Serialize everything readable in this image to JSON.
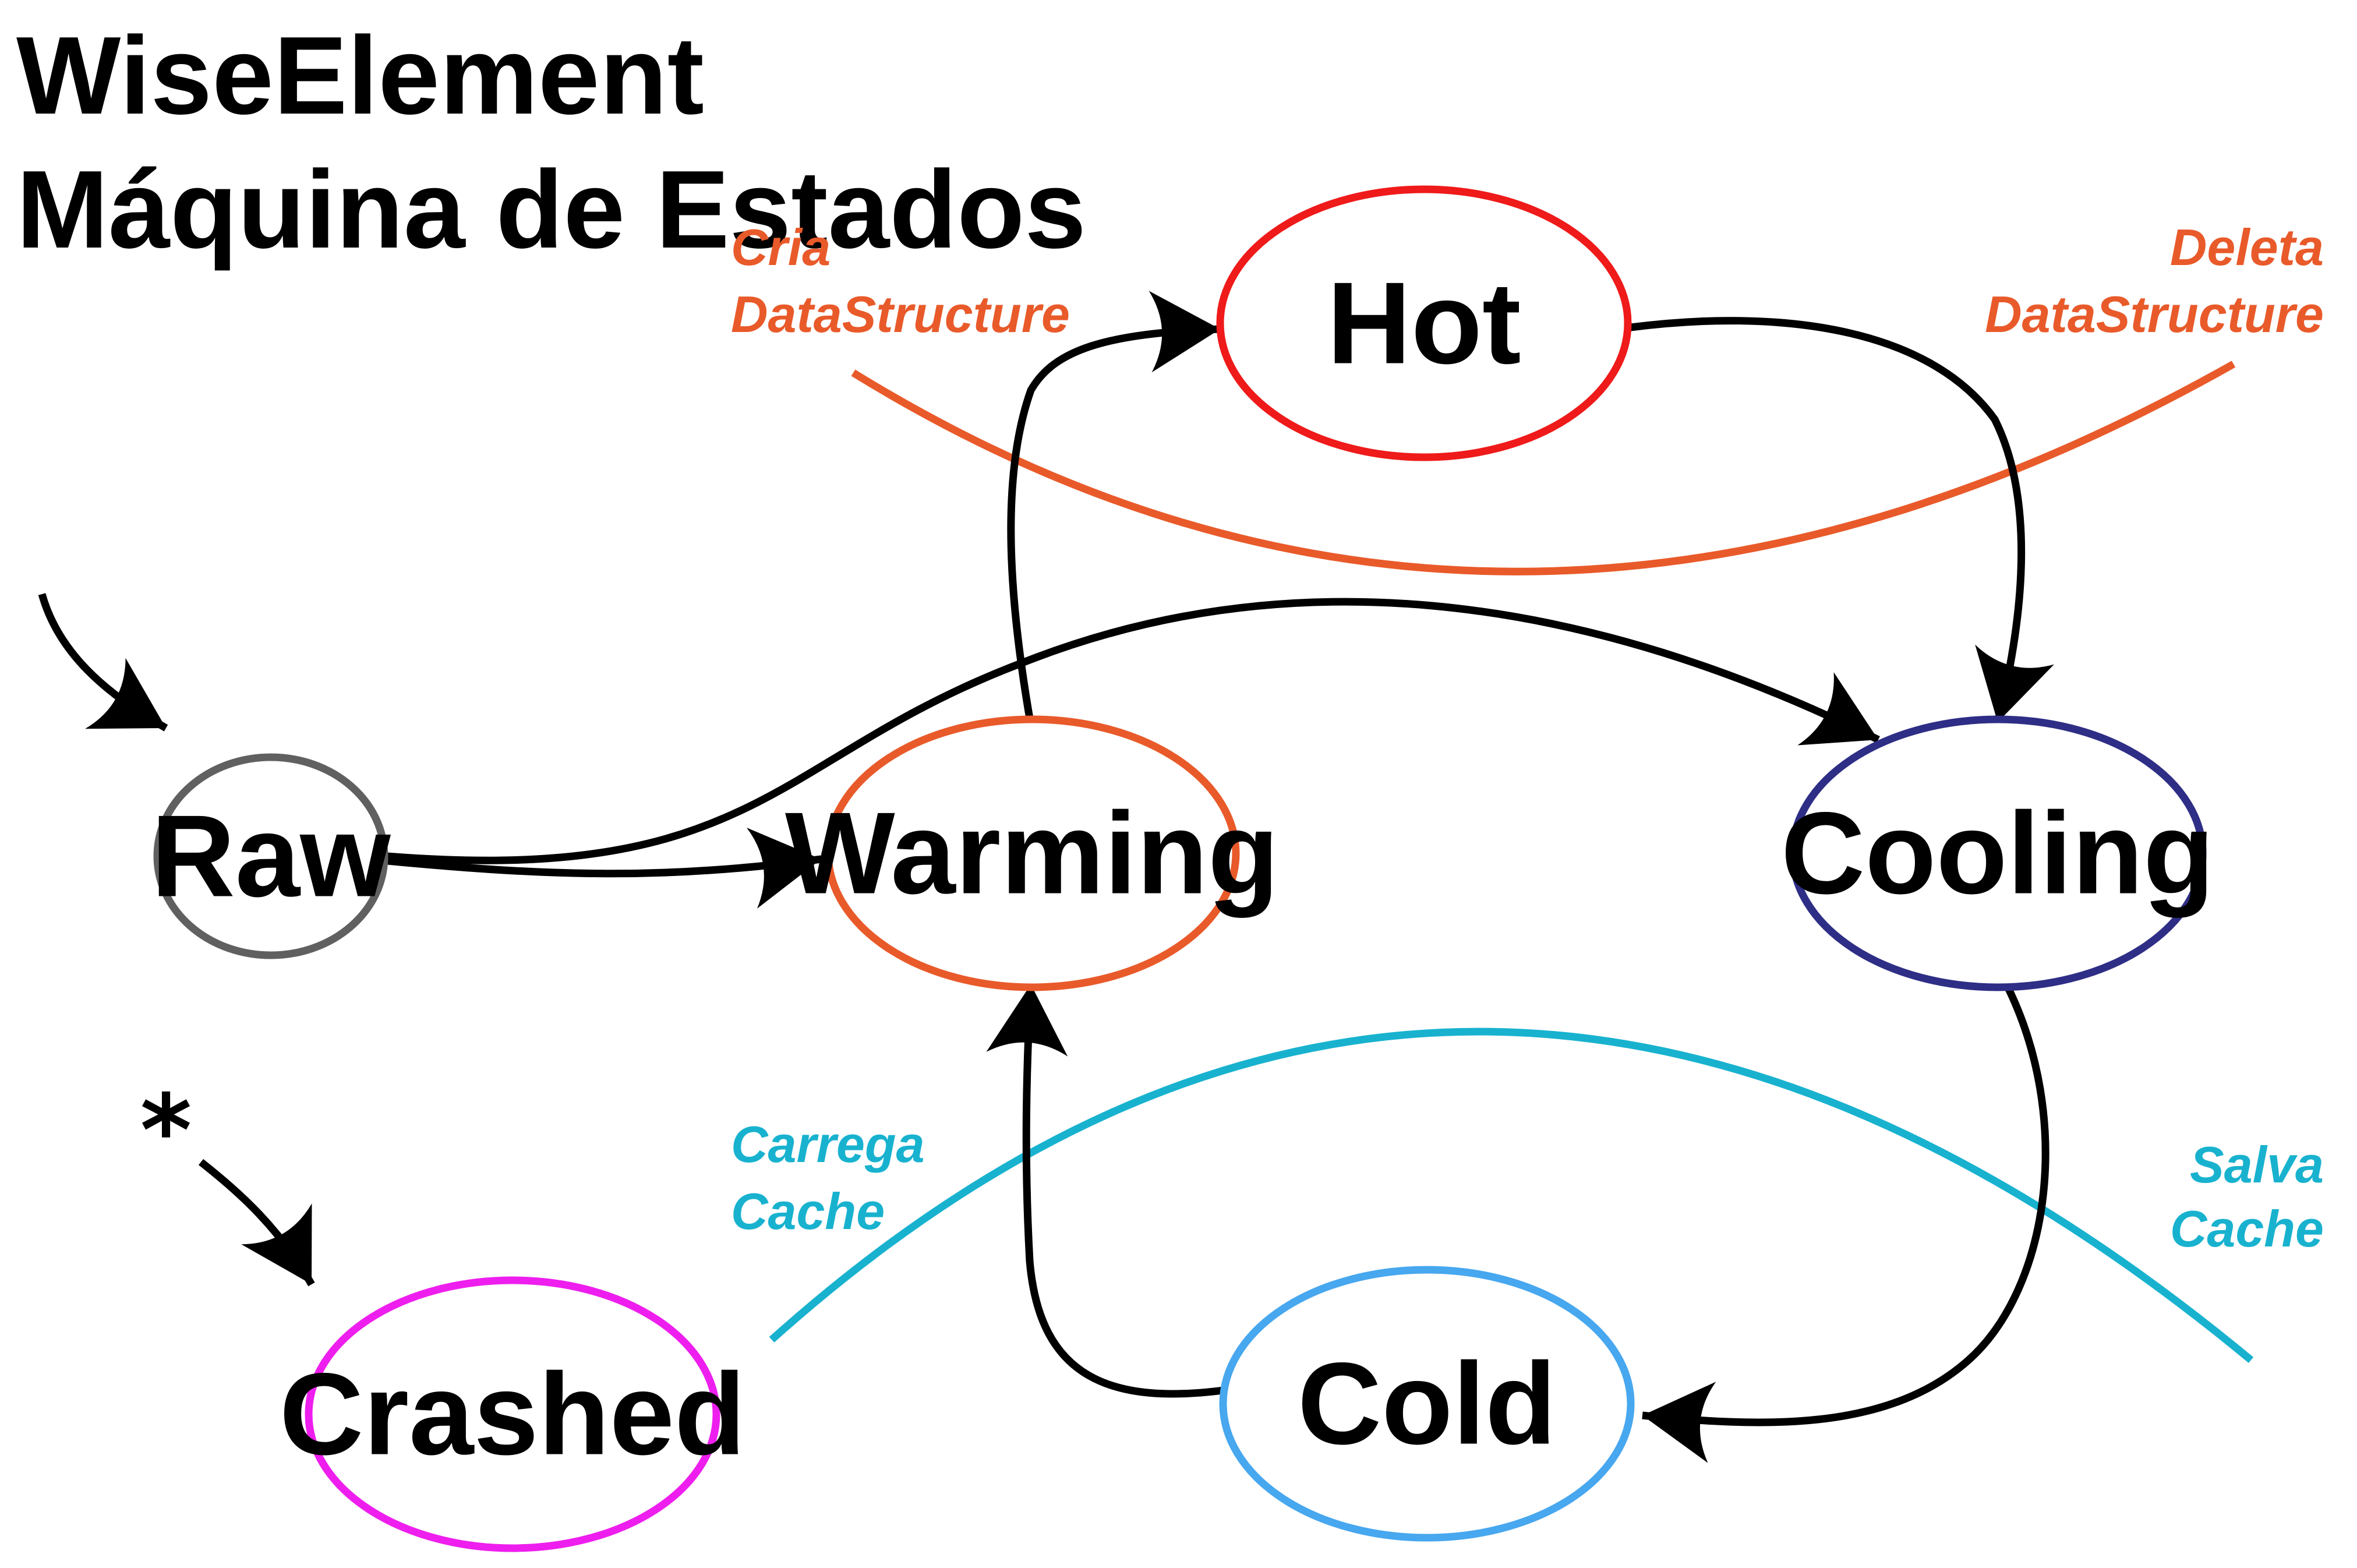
{
  "title": {
    "line1": "WiseElement",
    "line2": "Máquina de Estados"
  },
  "states": {
    "raw": {
      "label": "Raw",
      "color": "#606060"
    },
    "warming": {
      "label": "Warming",
      "color": "#e95a2a"
    },
    "hot": {
      "label": "Hot",
      "color": "#ef1a1a"
    },
    "cooling": {
      "label": "Cooling",
      "color": "#2e2e86"
    },
    "cold": {
      "label": "Cold",
      "color": "#47a7ef"
    },
    "crashed": {
      "label": "Crashed",
      "color": "#ee1eee"
    }
  },
  "annotations": {
    "create": {
      "line1": "Cria",
      "line2": "DataStructure",
      "color": "#e95a2a"
    },
    "delete": {
      "line1": "Deleta",
      "line2": "DataStructure",
      "color": "#e95a2a"
    },
    "load": {
      "line1": "Carrega",
      "line2": "Cache",
      "color": "#18b2cf"
    },
    "save": {
      "line1": "Salva",
      "line2": "Cache",
      "color": "#18b2cf"
    }
  },
  "any_state_marker": "*"
}
